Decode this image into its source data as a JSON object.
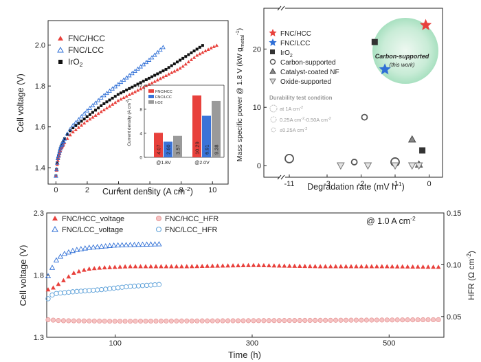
{
  "chart_data": [
    {
      "type": "line",
      "panel": "top-left",
      "xlabel": "Current density (A cm",
      "xlabel_sup": "-2",
      "xlabel_end": ")",
      "ylabel": "Cell voltage (V)",
      "xlim": [
        -0.5,
        11
      ],
      "ylim": [
        1.32,
        2.12
      ],
      "xticks": [
        0,
        2,
        4,
        6,
        8,
        10
      ],
      "yticks": [
        1.4,
        1.6,
        1.8,
        2.0
      ],
      "legend_position": "top-left",
      "series": [
        {
          "name": "FNC/HCC",
          "color": "#e8413c",
          "marker": "triangle-filled",
          "xmax": 10.3,
          "points": [
            [
              0,
              1.36
            ],
            [
              0.1,
              1.43
            ],
            [
              0.3,
              1.49
            ],
            [
              0.6,
              1.53
            ],
            [
              1,
              1.57
            ],
            [
              1.5,
              1.6
            ],
            [
              2,
              1.63
            ],
            [
              3,
              1.68
            ],
            [
              4,
              1.73
            ],
            [
              5,
              1.77
            ],
            [
              6,
              1.81
            ],
            [
              7,
              1.85
            ],
            [
              8,
              1.89
            ],
            [
              9,
              1.95
            ],
            [
              10,
              1.99
            ],
            [
              10.3,
              2.0
            ]
          ]
        },
        {
          "name": "FNC/LCC",
          "color": "#2f6fd6",
          "marker": "triangle-open",
          "xmax": 7.0,
          "points": [
            [
              0,
              1.36
            ],
            [
              0.1,
              1.44
            ],
            [
              0.3,
              1.5
            ],
            [
              0.6,
              1.55
            ],
            [
              1,
              1.6
            ],
            [
              1.5,
              1.64
            ],
            [
              2,
              1.68
            ],
            [
              3,
              1.75
            ],
            [
              4,
              1.81
            ],
            [
              5,
              1.87
            ],
            [
              6,
              1.93
            ],
            [
              7,
              2.0
            ]
          ]
        },
        {
          "name": "IrO",
          "name_sub": "2",
          "color": "#111111",
          "marker": "square-filled",
          "xmax": 9.4,
          "points": [
            [
              0,
              1.36
            ],
            [
              0.1,
              1.44
            ],
            [
              0.3,
              1.5
            ],
            [
              0.6,
              1.55
            ],
            [
              1,
              1.59
            ],
            [
              1.5,
              1.62
            ],
            [
              2,
              1.65
            ],
            [
              3,
              1.71
            ],
            [
              4,
              1.76
            ],
            [
              5,
              1.8
            ],
            [
              6,
              1.84
            ],
            [
              7,
              1.88
            ],
            [
              8,
              1.93
            ],
            [
              9,
              1.98
            ],
            [
              9.4,
              2.0
            ]
          ]
        }
      ],
      "inset": {
        "type": "bar",
        "ylabel": "Current density (A cm",
        "ylabel_sup": "-2",
        "ylabel_end": ")",
        "ylim": [
          0,
          12
        ],
        "yticks": [
          0,
          4,
          8,
          12
        ],
        "categories": [
          "@1.8V",
          "@2.0V"
        ],
        "legend": [
          "FNC/HCC",
          "FNC/LCC",
          "IrO2"
        ],
        "series": [
          {
            "name": "FNC/HCC",
            "color": "#e8413c",
            "values": [
              4.07,
              10.29
            ],
            "labels": [
              "4.07",
              "10.29"
            ]
          },
          {
            "name": "FNC/LCC",
            "color": "#3a73d8",
            "values": [
              2.6,
              6.91
            ],
            "labels": [
              "2.60",
              "6.91"
            ]
          },
          {
            "name": "IrO2",
            "color": "#9a9a9a",
            "values": [
              3.57,
              9.38
            ],
            "labels": [
              "3.57",
              "9.38"
            ]
          }
        ]
      }
    },
    {
      "type": "scatter",
      "panel": "top-right",
      "xlabel": "Degradation rate (mV h",
      "xlabel_sup": "-1",
      "xlabel_end": ")",
      "ylabel": "Mass specific power @ 1.8 V (kW g",
      "ylabel_sub": "metal",
      "ylabel_sup": "-1",
      "ylabel_end": ")",
      "xticks": [
        "-11",
        "-3",
        "-2",
        "-1",
        "0"
      ],
      "yticks": [
        0,
        10,
        20
      ],
      "ylim": [
        -2,
        27
      ],
      "legend": [
        {
          "label": "FNC/HCC",
          "marker": "star",
          "color": "#e8413c"
        },
        {
          "label": "FNC/LCC",
          "marker": "star",
          "color": "#2f6fd6"
        },
        {
          "label": "IrO",
          "label_sub": "2",
          "marker": "square",
          "color": "#333333"
        },
        {
          "label": "Carbon-supported",
          "marker": "circle-open",
          "color": "#555555"
        },
        {
          "label": "Catalyst-coated NF",
          "marker": "triangle-gray",
          "color": "#666666"
        },
        {
          "label": "Oxide-supported",
          "marker": "triangle-down-open",
          "color": "#777777"
        }
      ],
      "durability_title": "Durability test condition",
      "durability_items": [
        {
          "label": "at 1A cm",
          "sup": "-2"
        },
        {
          "label": "0.25A cm",
          "sup": "-2",
          "mid": "-0.50A cm",
          "sup2": "-2"
        },
        {
          "label": "≤0.25A cm",
          "sup": "-2"
        }
      ],
      "highlight_title": "Carbon-supported",
      "highlight_subtitle": "(this work)",
      "points": [
        {
          "group": "FNC/HCC",
          "x": -0.1,
          "y": 24.1,
          "marker": "star",
          "color": "#e8413c"
        },
        {
          "group": "FNC/LCC",
          "x": -1.3,
          "y": 16.5,
          "marker": "star",
          "color": "#2f6fd6"
        },
        {
          "group": "IrO2",
          "x": -1.6,
          "y": 21.2,
          "marker": "square",
          "color": "#333333"
        },
        {
          "group": "IrO2",
          "x": -0.2,
          "y": 2.6,
          "marker": "square",
          "color": "#333333"
        },
        {
          "group": "Carbon-supported",
          "x": -11,
          "y": 1.2,
          "marker": "circle-open",
          "size": 6
        },
        {
          "group": "Carbon-supported",
          "x": -2.2,
          "y": 0.6,
          "marker": "circle-open",
          "size": 4
        },
        {
          "group": "Carbon-supported",
          "x": -1.9,
          "y": 8.3,
          "marker": "circle-open",
          "size": 4
        },
        {
          "group": "Carbon-supported",
          "x": -1.0,
          "y": 0.6,
          "marker": "circle-open",
          "size": 6
        },
        {
          "group": "Catalyst-coated NF",
          "x": -0.5,
          "y": 4.5,
          "marker": "triangle-gray"
        },
        {
          "group": "Catalyst-coated NF",
          "x": -0.3,
          "y": 0.2,
          "marker": "triangle-gray"
        },
        {
          "group": "Oxide-supported",
          "x": -2.6,
          "y": 0.0,
          "marker": "triangle-down-open"
        },
        {
          "group": "Oxide-supported",
          "x": -1.8,
          "y": 0.0,
          "marker": "triangle-down-open"
        },
        {
          "group": "Oxide-supported",
          "x": -1.0,
          "y": 0.0,
          "marker": "triangle-down-open"
        },
        {
          "group": "Oxide-supported",
          "x": -0.5,
          "y": 0.0,
          "marker": "triangle-down-open"
        },
        {
          "group": "Oxide-supported",
          "x": -0.3,
          "y": 0.0,
          "marker": "triangle-down-open"
        }
      ]
    },
    {
      "type": "scatter",
      "panel": "bottom",
      "xlabel": "Time (h)",
      "ylabel_left": "Cell voltage (V)",
      "ylabel_right": "HFR (Ω cm",
      "ylabel_right_sup": "-2",
      "ylabel_right_end": ")",
      "annotation": "@ 1.0 A cm",
      "annotation_sup": "-2",
      "xlim": [
        0,
        580
      ],
      "ylim_left": [
        1.3,
        2.3
      ],
      "ylim_right": [
        0.03,
        0.15
      ],
      "xticks": [
        100,
        300,
        500
      ],
      "yticks_left": [
        1.3,
        1.8,
        2.3
      ],
      "yticks_right": [
        0.05,
        0.1,
        0.15
      ],
      "legend": [
        {
          "label": "FNC/HCC_voltage",
          "marker": "triangle-filled",
          "color": "#e8413c"
        },
        {
          "label": "FNC/LCC_voltage",
          "marker": "triangle-open",
          "color": "#2f6fd6"
        },
        {
          "label": "FNC/HCC_HFR",
          "marker": "circle-pink",
          "color": "#e89898"
        },
        {
          "label": "FNC/LCC_HFR",
          "marker": "circle-open",
          "color": "#5a9fd8"
        }
      ],
      "series": [
        {
          "name": "FNC/HCC_voltage",
          "axis": "left",
          "x_start": 2,
          "x_end": 578,
          "step": 7.5,
          "points": [
            [
              0,
              1.68
            ],
            [
              10,
              1.7
            ],
            [
              25,
              1.76
            ],
            [
              40,
              1.82
            ],
            [
              60,
              1.85
            ],
            [
              80,
              1.86
            ],
            [
              120,
              1.87
            ],
            [
              200,
              1.87
            ],
            [
              300,
              1.88
            ],
            [
              400,
              1.87
            ],
            [
              500,
              1.87
            ],
            [
              578,
              1.865
            ]
          ]
        },
        {
          "name": "FNC/LCC_voltage",
          "axis": "left",
          "x_start": 2,
          "x_end": 166,
          "step": 6,
          "points": [
            [
              0,
              1.77
            ],
            [
              8,
              1.86
            ],
            [
              15,
              1.93
            ],
            [
              25,
              1.97
            ],
            [
              40,
              2.0
            ],
            [
              60,
              2.02
            ],
            [
              100,
              2.04
            ],
            [
              166,
              2.05
            ]
          ]
        },
        {
          "name": "FNC/HCC_HFR",
          "axis": "right",
          "x_start": 2,
          "x_end": 578,
          "step": 7.5,
          "points": [
            [
              0,
              0.047
            ],
            [
              20,
              0.046
            ],
            [
              100,
              0.0455
            ],
            [
              300,
              0.046
            ],
            [
              450,
              0.0465
            ],
            [
              578,
              0.047
            ]
          ]
        },
        {
          "name": "FNC/LCC_HFR",
          "axis": "right",
          "x_start": 2,
          "x_end": 166,
          "step": 6,
          "points": [
            [
              0,
              0.066
            ],
            [
              10,
              0.072
            ],
            [
              40,
              0.074
            ],
            [
              80,
              0.076
            ],
            [
              120,
              0.079
            ],
            [
              166,
              0.081
            ]
          ]
        }
      ]
    }
  ]
}
